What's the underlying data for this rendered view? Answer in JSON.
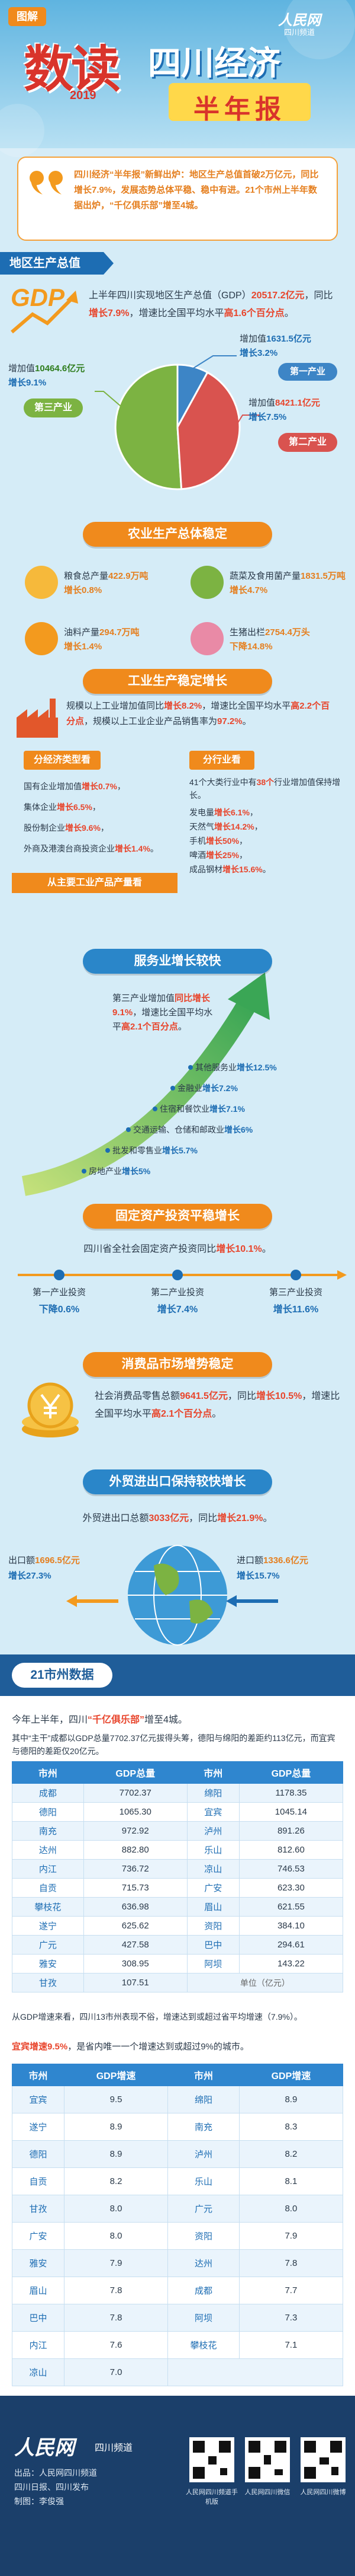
{
  "header": {
    "tag": "图解",
    "title": "数读",
    "year": "2019",
    "subtitle": "四川经济",
    "banner": "半年报",
    "logo": "人民网",
    "logo_sub": "四川频道"
  },
  "intro": "四川经济“半年报”新鲜出炉：地区生产总值首破2万亿元，同比增长7.9%，发展态势总体平稳、稳中有进。21个市州上半年数据出炉，“千亿俱乐部”增至4城。",
  "gdp": {
    "heading": "地区生产总值",
    "icon": "GDP",
    "summary": [
      "上半年四川实现地区生产总值（GDP）",
      "20517.2亿元",
      "，同比",
      "增长7.9%",
      "，增速比全国平均水平",
      "高1.6个百分点",
      "。"
    ],
    "tertiary": {
      "amount": [
        "增加值",
        "10464.6亿元"
      ],
      "growth": "增长9.1%",
      "name": "第三产业"
    },
    "primary": {
      "amount": [
        "增加值",
        "1631.5亿元"
      ],
      "growth": "增长3.2%",
      "name": "第一产业"
    },
    "secondary": {
      "amount": [
        "增加值",
        "8421.1亿元"
      ],
      "growth": "增长7.5%",
      "name": "第二产业"
    }
  },
  "agriculture": {
    "heading": "农业生产总体稳定",
    "items": [
      {
        "text": [
          "粮食总产量",
          "422.9万吨"
        ],
        "change": "增长0.8%"
      },
      {
        "text": [
          "蔬菜及食用菌产量",
          "1831.5万吨"
        ],
        "change": "增长4.7%"
      },
      {
        "text": [
          "油料产量",
          "294.7万吨"
        ],
        "change": "增长1.4%"
      },
      {
        "text": [
          "生猪出栏",
          "2754.4万头"
        ],
        "change": "下降14.8%"
      }
    ]
  },
  "industry": {
    "heading": "工业生产稳定增长",
    "summary": [
      "规模以上工业增加值同比",
      "增长8.2%",
      "，增速比全国平均水平",
      "高2.2个百分点",
      "，规模以上工业企业产品销售率为",
      "97.2%",
      "。"
    ],
    "by_type": {
      "heading": "分经济类型看",
      "items": [
        [
          "国有企业增加值",
          "增长0.7%",
          "，"
        ],
        [
          "集体企业",
          "增长6.5%",
          "，"
        ],
        [
          "股份制企业",
          "增长9.6%",
          "，"
        ],
        [
          "外商及港澳台商投资企业",
          "增长1.4%",
          "。"
        ]
      ]
    },
    "by_industry": {
      "heading": "分行业看",
      "intro": [
        "41个大类行业中有",
        "38个",
        "行业增加值保持增长。"
      ],
      "items": [
        [
          "发电量",
          "增长6.1%",
          "，"
        ],
        [
          "天然气",
          "增长14.2%",
          "，"
        ],
        [
          "手机",
          "增长50%",
          "，"
        ],
        [
          "啤酒",
          "增长25%",
          "，"
        ],
        [
          "成品钢材",
          "增长15.6%",
          "。"
        ]
      ]
    },
    "products_heading": "从主要工业产品产量看"
  },
  "services": {
    "heading": "服务业增长较快",
    "summary": [
      "第三产业增加值",
      "同比增长9.1%",
      "，增速比全国平均水平",
      "高2.1个百分点",
      "。"
    ],
    "items": [
      [
        "其他服务业",
        "增长12.5%"
      ],
      [
        "金融业",
        "增长7.2%"
      ],
      [
        "住宿和餐饮业",
        "增长7.1%"
      ],
      [
        "交通运输、仓储和邮政业",
        "增长6%"
      ],
      [
        "批发和零售业",
        "增长5.7%"
      ],
      [
        "房地产业",
        "增长5%"
      ]
    ]
  },
  "investment": {
    "heading": "固定资产投资平稳增长",
    "summary": [
      "四川省全社会固定资产投资同比",
      "增长10.1%",
      "。"
    ],
    "items": [
      {
        "label": "第一产业投资",
        "change": "下降0.6%"
      },
      {
        "label": "第二产业投资",
        "change": "增长7.4%"
      },
      {
        "label": "第三产业投资",
        "change": "增长11.6%"
      }
    ]
  },
  "consumption": {
    "heading": "消费品市场增势稳定",
    "summary": [
      "社会消费品零售总额",
      "9641.5亿元",
      "，同比",
      "增长10.5%",
      "，增速比全国平均水平",
      "高2.1个百分点",
      "。"
    ]
  },
  "trade": {
    "heading": "外贸进出口保持较快增长",
    "summary": [
      "外贸进出口总额",
      "3033亿元",
      "，同比",
      "增长21.9%",
      "。"
    ],
    "export": {
      "text": [
        "出口额",
        "1696.5亿元"
      ],
      "change": "增长27.3%"
    },
    "import": {
      "text": [
        "进口额",
        "1336.6亿元"
      ],
      "change": "增长15.7%"
    }
  },
  "cities": {
    "heading": "21市州数据",
    "intro": [
      "今年上半年，四川",
      "“千亿俱乐部”",
      "增至4城。"
    ],
    "note": "其中“主干”成都以GDP总量7702.37亿元拔得头筹，德阳与绵阳的差距约113亿元，而宜宾与德阳的差距仅20亿元。",
    "table1": {
      "header": [
        "市州",
        "GDP总量",
        "市州",
        "GDP总量"
      ],
      "rows": [
        [
          "成都",
          "7702.37",
          "绵阳",
          "1178.35"
        ],
        [
          "德阳",
          "1065.30",
          "宜宾",
          "1045.14"
        ],
        [
          "南充",
          "972.92",
          "泸州",
          "891.26"
        ],
        [
          "达州",
          "882.80",
          "乐山",
          "812.60"
        ],
        [
          "内江",
          "736.72",
          "凉山",
          "746.53"
        ],
        [
          "自贡",
          "715.73",
          "广安",
          "623.30"
        ],
        [
          "攀枝花",
          "636.98",
          "眉山",
          "621.55"
        ],
        [
          "遂宁",
          "625.62",
          "资阳",
          "384.10"
        ],
        [
          "广元",
          "427.58",
          "巴中",
          "294.61"
        ],
        [
          "雅安",
          "308.95",
          "阿坝",
          "143.22"
        ],
        [
          "甘孜",
          "107.51"
        ]
      ],
      "unit": "单位（亿元）"
    },
    "growth_intro": "从GDP增速来看，四川13市州表现不俗，增速达到或超过省平均增速（7.9%）。",
    "growth_note": [
      "宜宾增速9.5%",
      "，是省内唯一一个增速达到或超过9%的城市。"
    ],
    "table2": {
      "header": [
        "市州",
        "GDP增速",
        "市州",
        "GDP增速"
      ],
      "rows": [
        [
          "宜宾",
          "9.5",
          "绵阳",
          "8.9"
        ],
        [
          "遂宁",
          "8.9",
          "南充",
          "8.3"
        ],
        [
          "德阳",
          "8.9",
          "泸州",
          "8.2"
        ],
        [
          "自贡",
          "8.2",
          "乐山",
          "8.1"
        ],
        [
          "甘孜",
          "8.0",
          "广元",
          "8.0"
        ],
        [
          "广安",
          "8.0",
          "资阳",
          "7.9"
        ],
        [
          "雅安",
          "7.9",
          "达州",
          "7.8"
        ],
        [
          "眉山",
          "7.8",
          "成都",
          "7.7"
        ],
        [
          "巴中",
          "7.8",
          "阿坝",
          "7.3"
        ],
        [
          "内江",
          "7.6",
          "攀枝花",
          "7.1"
        ],
        [
          "凉山",
          "7.0"
        ]
      ]
    }
  },
  "footer": {
    "logo": "人民网",
    "logo_sub": "四川频道",
    "credits": [
      "出品：人民网四川频道",
      "四川日报、四川发布",
      "制图：李俊强"
    ],
    "qr_captions": [
      "人民网四川频道手机版",
      "人民网四川微信",
      "人民网四川微博"
    ]
  }
}
